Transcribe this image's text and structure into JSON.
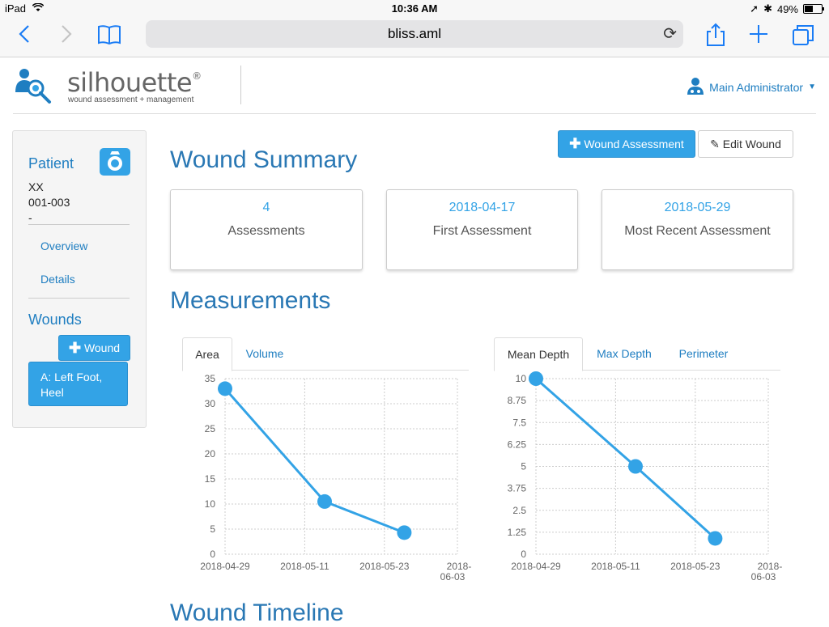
{
  "status_bar": {
    "device": "iPad",
    "time": "10:36 AM",
    "battery": "49%",
    "battery_fraction": 0.49
  },
  "browser": {
    "url": "bliss.aml"
  },
  "app": {
    "logo": "silhouette",
    "logo_mark": "®",
    "tagline": "wound assessment + management",
    "user": "Main Administrator"
  },
  "sidebar": {
    "patient_heading": "Patient",
    "patient_name": "XX",
    "patient_id": "001-003",
    "patient_extra": "-",
    "links": [
      "Overview",
      "Details"
    ],
    "wounds_heading": "Wounds",
    "add_wound": "Wound",
    "wound_item": "A: Left Foot, Heel"
  },
  "main": {
    "add_assessment": "Wound Assessment",
    "edit_wound": "Edit Wound",
    "summary_title": "Wound Summary",
    "cards": [
      {
        "value": "4",
        "label": "Assessments"
      },
      {
        "value": "2018-04-17",
        "label": "First Assessment"
      },
      {
        "value": "2018-05-29",
        "label": "Most Recent Assessment"
      }
    ],
    "measurements_title": "Measurements",
    "left_tabs": [
      "Area",
      "Volume"
    ],
    "right_tabs": [
      "Mean Depth",
      "Max Depth",
      "Perimeter"
    ],
    "timeline_title": "Wound Timeline"
  },
  "colors": {
    "accent": "#33a3e6",
    "heading": "#2a78b4",
    "link": "#1f7ec1"
  },
  "chart_data": [
    {
      "type": "line",
      "x_ticks": [
        "2018-04-29",
        "2018-05-11",
        "2018-05-23",
        "2018-06-03"
      ],
      "x": [
        "2018-04-29",
        "2018-05-14",
        "2018-05-26"
      ],
      "series": [
        {
          "values": [
            33,
            10.5,
            4.3
          ]
        }
      ],
      "y_ticks": [
        "0",
        "5",
        "10",
        "15",
        "20",
        "25",
        "30",
        "35"
      ],
      "ylim": [
        0,
        35
      ],
      "grid": true
    },
    {
      "type": "line",
      "x_ticks": [
        "2018-04-29",
        "2018-05-11",
        "2018-05-23",
        "2018-06-03"
      ],
      "x": [
        "2018-04-29",
        "2018-05-14",
        "2018-05-26"
      ],
      "series": [
        {
          "values": [
            10,
            5,
            0.9
          ]
        }
      ],
      "y_ticks": [
        "0",
        "1.25",
        "2.5",
        "3.75",
        "5",
        "6.25",
        "7.5",
        "8.75",
        "10"
      ],
      "ylim": [
        0,
        10
      ],
      "grid": true
    }
  ]
}
